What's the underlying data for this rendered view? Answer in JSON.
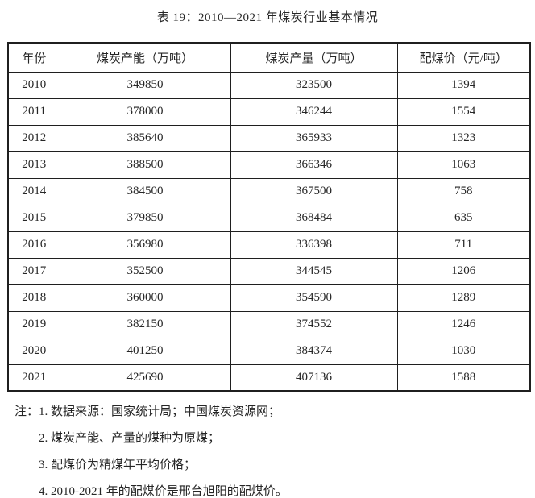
{
  "title": "表 19：2010—2021 年煤炭行业基本情况",
  "table": {
    "column_keys": [
      "year",
      "capacity",
      "output",
      "blend-price"
    ],
    "headers": [
      "年份",
      "煤炭产能（万吨）",
      "煤炭产量（万吨）",
      "配煤价（元/吨）"
    ],
    "rows": [
      [
        "2010",
        "349850",
        "323500",
        "1394"
      ],
      [
        "2011",
        "378000",
        "346244",
        "1554"
      ],
      [
        "2012",
        "385640",
        "365933",
        "1323"
      ],
      [
        "2013",
        "388500",
        "366346",
        "1063"
      ],
      [
        "2014",
        "384500",
        "367500",
        "758"
      ],
      [
        "2015",
        "379850",
        "368484",
        "635"
      ],
      [
        "2016",
        "356980",
        "336398",
        "711"
      ],
      [
        "2017",
        "352500",
        "344545",
        "1206"
      ],
      [
        "2018",
        "360000",
        "354590",
        "1289"
      ],
      [
        "2019",
        "382150",
        "374552",
        "1246"
      ],
      [
        "2020",
        "401250",
        "384374",
        "1030"
      ],
      [
        "2021",
        "425690",
        "407136",
        "1588"
      ]
    ]
  },
  "notes": {
    "label": "注：",
    "items": [
      "1. 数据来源：国家统计局；中国煤炭资源网；",
      "2. 煤炭产能、产量的煤种为原煤；",
      "3. 配煤价为精煤年平均价格；",
      "4. 2010-2021 年的配煤价是邢台旭阳的配煤价。"
    ]
  },
  "colors": {
    "text": "#262626",
    "border": "#1f1f1f",
    "background": "#ffffff"
  }
}
